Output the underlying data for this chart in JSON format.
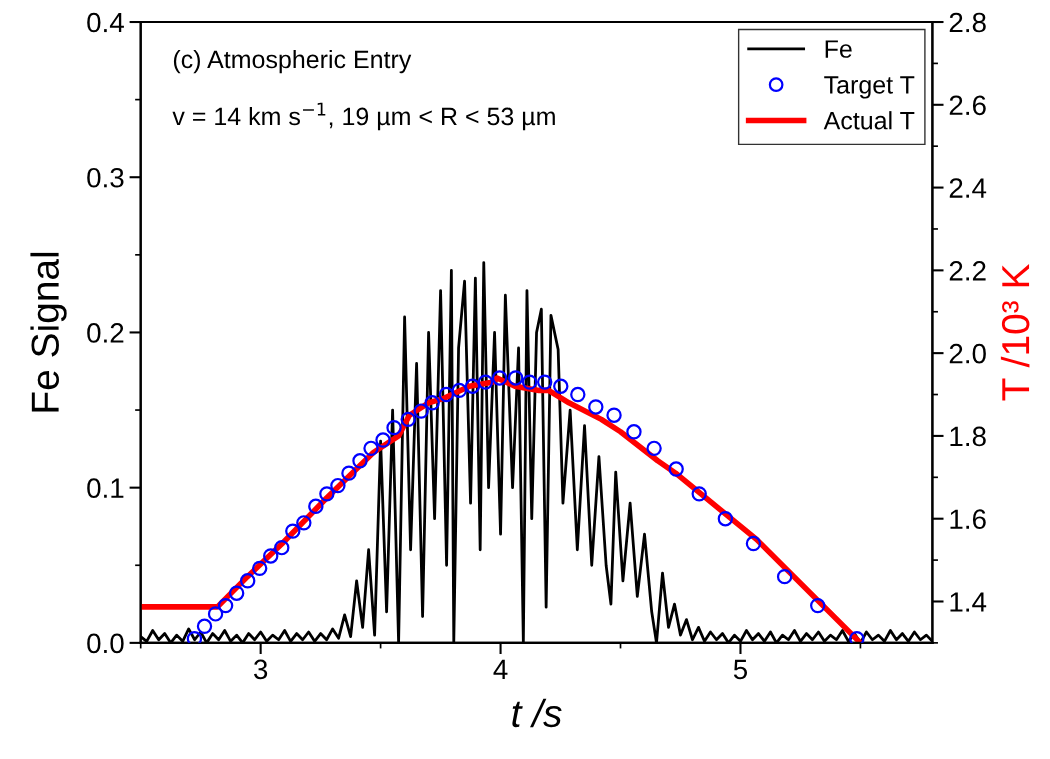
{
  "chart_data": {
    "type": "line",
    "xlabel": "t /s",
    "ylabel": "Fe Signal",
    "y2label": "T /10³ K",
    "annotations": [
      "(c) Atmospheric Entry",
      "v = 14 km s$^{−1}$, 19 µm < R < 53 µm"
    ],
    "xlim": [
      2.5,
      5.8
    ],
    "xticks": [
      3,
      4,
      5
    ],
    "ylim": [
      0.0,
      0.4
    ],
    "yticks": [
      {
        "value": 0,
        "label": "0.0"
      },
      0.1,
      0.2,
      0.3,
      0.4
    ],
    "y2lim": [
      1.3,
      2.8
    ],
    "y2ticks": [
      1.4,
      1.6,
      1.8,
      {
        "value": 2,
        "label": "2.0"
      },
      2.2,
      2.4,
      2.6,
      2.8
    ],
    "legend": "top right",
    "grid": false,
    "series": [
      {
        "name": "Fe",
        "color": "#000000",
        "x": [
          2.5,
          2.525,
          2.55,
          2.575,
          2.6,
          2.625,
          2.65,
          2.675,
          2.7,
          2.725,
          2.75,
          2.775,
          2.8,
          2.825,
          2.85,
          2.875,
          2.9,
          2.925,
          2.95,
          2.975,
          3.0,
          3.025,
          3.05,
          3.075,
          3.1,
          3.125,
          3.15,
          3.175,
          3.2,
          3.225,
          3.25,
          3.275,
          3.3,
          3.325,
          3.35,
          3.375,
          3.4,
          3.425,
          3.45,
          3.475,
          3.5,
          3.525,
          3.55,
          3.575,
          3.6,
          3.625,
          3.65,
          3.675,
          3.7,
          3.725,
          3.75,
          3.775,
          3.795,
          3.805,
          3.825,
          3.85,
          3.875,
          3.895,
          3.915,
          3.93,
          3.95,
          3.975,
          4.0,
          4.02,
          4.05,
          4.075,
          4.095,
          4.11,
          4.13,
          4.15,
          4.17,
          4.19,
          4.21,
          4.24,
          4.26,
          4.29,
          4.32,
          4.35,
          4.38,
          4.41,
          4.44,
          4.46,
          4.48,
          4.51,
          4.54,
          4.57,
          4.6,
          4.63,
          4.65,
          4.675,
          4.7,
          4.725,
          4.75,
          4.775,
          4.8,
          4.825,
          4.85,
          4.875,
          4.9,
          4.925,
          4.95,
          4.975,
          5.0,
          5.025,
          5.05,
          5.075,
          5.1,
          5.125,
          5.15,
          5.175,
          5.2,
          5.225,
          5.25,
          5.275,
          5.3,
          5.325,
          5.35,
          5.375,
          5.4,
          5.425,
          5.45,
          5.475,
          5.5,
          5.525,
          5.55,
          5.575,
          5.6,
          5.625,
          5.65,
          5.675,
          5.7,
          5.725,
          5.75,
          5.775,
          5.8
        ],
        "values": [
          0.004,
          0.001,
          0.008,
          0.002,
          0.006,
          0.0,
          0.005,
          0.001,
          0.009,
          0.002,
          0.007,
          0.0,
          0.006,
          0.002,
          0.008,
          0.001,
          0.005,
          0.0,
          0.006,
          0.002,
          0.007,
          0.001,
          0.005,
          0.002,
          0.008,
          0.001,
          0.006,
          0.002,
          0.007,
          0.001,
          0.006,
          0.002,
          0.009,
          0.003,
          0.018,
          0.004,
          0.04,
          0.01,
          0.06,
          0.005,
          0.13,
          0.02,
          0.15,
          0.0,
          0.21,
          0.06,
          0.18,
          0.017,
          0.2,
          0.08,
          0.227,
          0.05,
          0.24,
          0.0,
          0.19,
          0.233,
          0.09,
          0.235,
          0.06,
          0.245,
          0.1,
          0.2,
          0.07,
          0.224,
          0.1,
          0.19,
          0.0,
          0.227,
          0.08,
          0.2,
          0.215,
          0.023,
          0.211,
          0.189,
          0.09,
          0.15,
          0.06,
          0.14,
          0.05,
          0.12,
          0.05,
          0.025,
          0.11,
          0.04,
          0.09,
          0.03,
          0.07,
          0.02,
          0.0,
          0.045,
          0.01,
          0.025,
          0.005,
          0.015,
          0.002,
          0.01,
          0.001,
          0.007,
          0.002,
          0.006,
          0.0,
          0.005,
          0.001,
          0.008,
          0.002,
          0.006,
          0.001,
          0.007,
          0.0,
          0.005,
          0.002,
          0.008,
          0.001,
          0.006,
          0.002,
          0.007,
          0.001,
          0.005,
          0.002,
          0.008,
          0.001,
          0.006,
          0.0,
          0.007,
          0.002,
          0.005,
          0.001,
          0.008,
          0.002,
          0.006,
          0.001,
          0.007,
          0.002,
          0.005,
          0.001
        ]
      },
      {
        "name": "Target T",
        "type": "scatter",
        "axis": "y2",
        "marker": "circle",
        "color": "#0000ff",
        "x": [
          2.724,
          2.766,
          2.812,
          2.854,
          2.9,
          2.946,
          2.996,
          3.042,
          3.088,
          3.134,
          3.18,
          3.23,
          3.276,
          3.322,
          3.368,
          3.414,
          3.46,
          3.51,
          3.556,
          3.615,
          3.669,
          3.715,
          3.774,
          3.828,
          3.883,
          3.937,
          3.996,
          4.063,
          4.121,
          4.184,
          4.251,
          4.322,
          4.397,
          4.473,
          4.556,
          4.64,
          4.732,
          4.828,
          4.937,
          5.054,
          5.184,
          5.322,
          5.485
        ],
        "values": [
          1.31,
          1.34,
          1.37,
          1.39,
          1.42,
          1.45,
          1.48,
          1.51,
          1.53,
          1.57,
          1.59,
          1.63,
          1.66,
          1.68,
          1.71,
          1.74,
          1.77,
          1.79,
          1.82,
          1.84,
          1.86,
          1.88,
          1.9,
          1.91,
          1.92,
          1.93,
          1.94,
          1.94,
          1.93,
          1.93,
          1.92,
          1.9,
          1.87,
          1.85,
          1.81,
          1.77,
          1.72,
          1.66,
          1.6,
          1.54,
          1.46,
          1.39,
          1.31
        ]
      },
      {
        "name": "Actual T",
        "type": "line",
        "axis": "y2",
        "color": "#ff0000",
        "x": [
          2.5,
          2.82,
          2.945,
          3.09,
          3.275,
          3.47,
          3.575,
          3.62,
          3.7,
          3.76,
          3.87,
          3.97,
          3.985,
          4.06,
          4.16,
          4.2,
          4.285,
          4.42,
          4.5,
          4.655,
          4.73,
          5.067,
          5.5
        ],
        "values": [
          1.387,
          1.387,
          1.46,
          1.54,
          1.65,
          1.76,
          1.8,
          1.85,
          1.88,
          1.89,
          1.92,
          1.93,
          1.94,
          1.92,
          1.91,
          1.91,
          1.88,
          1.84,
          1.81,
          1.74,
          1.71,
          1.55,
          1.3
        ]
      }
    ]
  }
}
